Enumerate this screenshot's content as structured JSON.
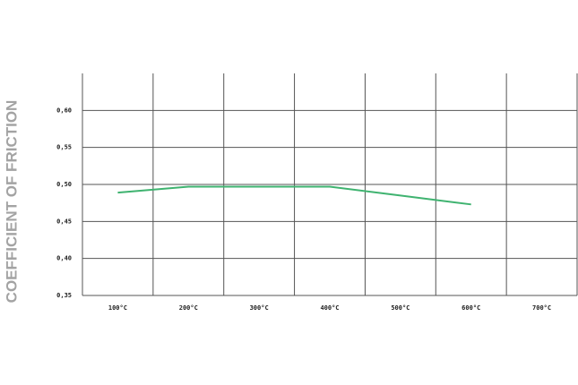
{
  "chart_data": {
    "type": "line",
    "y_label": "COEFFICIENT OF FRICTION",
    "categories": [
      "100°C",
      "200°C",
      "300°C",
      "400°C",
      "500°C",
      "600°C",
      "700°C"
    ],
    "series": [
      {
        "color": "#3fb370",
        "values": [
          0.489,
          0.497,
          0.497,
          0.497,
          0.485,
          0.473,
          null
        ]
      }
    ],
    "ylim": [
      0.35,
      0.65
    ],
    "yticks": [
      {
        "value": 0.35,
        "label": "0,35"
      },
      {
        "value": 0.4,
        "label": "0,40"
      },
      {
        "value": 0.45,
        "label": "0,45"
      },
      {
        "value": 0.5,
        "label": "0,50"
      },
      {
        "value": 0.55,
        "label": "0,55"
      },
      {
        "value": 0.6,
        "label": "0,60"
      }
    ],
    "grid": true
  }
}
